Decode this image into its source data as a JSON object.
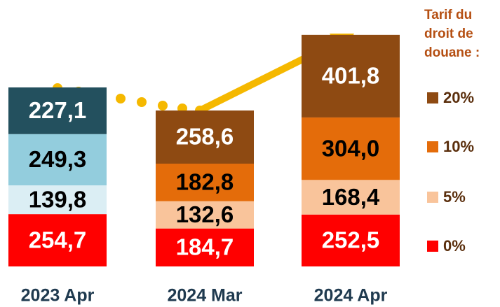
{
  "chart_data": {
    "type": "stacked_bar",
    "categories": [
      "2023 Apr",
      "2024 Mar",
      "2024 Apr"
    ],
    "legend_title": "Tarif du droit de douane :",
    "ylim": [
      0,
      1150
    ],
    "series": [
      {
        "name": "0%",
        "color": "#ff0000",
        "point_colors": [
          "#ff0000",
          "#ff0000",
          "#ff0000"
        ],
        "values": [
          254.7,
          184.7,
          252.5
        ],
        "value_labels": [
          "254,7",
          "184,7",
          "252,5"
        ]
      },
      {
        "name": "5%",
        "color": "#f9c49b",
        "point_colors": [
          "#dbeef4",
          "#f9c49b",
          "#f9c49b"
        ],
        "values": [
          139.8,
          132.6,
          168.4
        ],
        "value_labels": [
          "139,8",
          "132,6",
          "168,4"
        ]
      },
      {
        "name": "10%",
        "color": "#e46c0a",
        "point_colors": [
          "#93cddd",
          "#e46c0a",
          "#e46c0a"
        ],
        "values": [
          249.3,
          182.8,
          304.0
        ],
        "value_labels": [
          "249,3",
          "182,8",
          "304,0"
        ]
      },
      {
        "name": "20%",
        "color": "#8e4a12",
        "point_colors": [
          "#23505e",
          "#8e4a12",
          "#8e4a12"
        ],
        "values": [
          227.1,
          258.6,
          401.8
        ],
        "value_labels": [
          "227,1",
          "258,6",
          "401,8"
        ]
      }
    ]
  }
}
